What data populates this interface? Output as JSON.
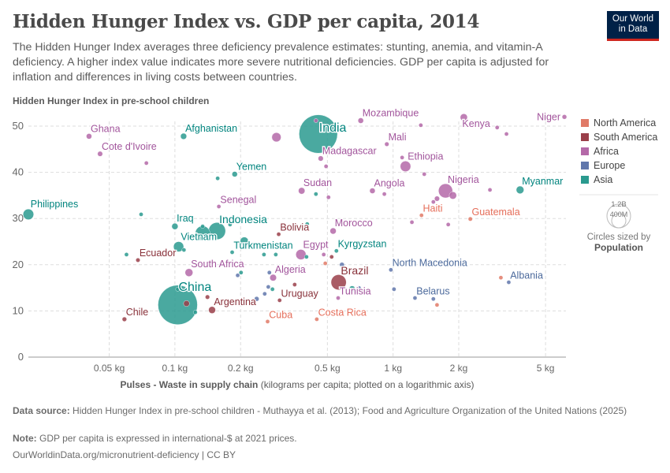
{
  "header": {
    "title": "Hidden Hunger Index vs. GDP per capita, 2014",
    "subtitle": "The Hidden Hunger Index averages three deficiency prevalence estimates: stunting, anemia, and vitamin-A deficiency. A higher index value indicates more severe nutritional deficiencies. GDP per capita is adjusted for inflation and differences in living costs between countries.",
    "logo_line1": "Our World",
    "logo_line2": "in Data"
  },
  "legend": {
    "items": [
      {
        "label": "North America",
        "color": "#E07A67"
      },
      {
        "label": "South America",
        "color": "#9A3F4A"
      },
      {
        "label": "Africa",
        "color": "#B469A8"
      },
      {
        "label": "Europe",
        "color": "#6077AC"
      },
      {
        "label": "Asia",
        "color": "#2A9A8F"
      }
    ],
    "size_big": "1.2B",
    "size_small": "400M",
    "size_caption": "Circles sized by",
    "size_variable": "Population"
  },
  "chart_data": {
    "type": "scatter",
    "title": "Hidden Hunger Index vs. GDP per capita, 2014",
    "ylabel": "Hidden Hunger Index in pre-school children",
    "xlabel_bold": "Pulses - Waste in supply chain",
    "xlabel_rest": "(kilograms per capita; plotted on a logarithmic axis)",
    "x_scale": "log",
    "xlim": [
      0.0213,
      6.2
    ],
    "ylim": [
      0,
      50
    ],
    "x_ticks": [
      {
        "v": 0.05,
        "label": "0.05 kg"
      },
      {
        "v": 0.1,
        "label": "0.1 kg"
      },
      {
        "v": 0.2,
        "label": "0.2 kg"
      },
      {
        "v": 0.5,
        "label": "0.5 kg"
      },
      {
        "v": 1,
        "label": "1 kg"
      },
      {
        "v": 2,
        "label": "2 kg"
      },
      {
        "v": 5,
        "label": "5 kg"
      }
    ],
    "y_ticks": [
      0,
      10,
      20,
      30,
      40,
      50
    ],
    "grid": true,
    "legend_position": "right",
    "label_colors": {
      "North America": "#E56E5A",
      "South America": "#883039",
      "Africa": "#A2559C",
      "Europe": "#4C6A9C",
      "Asia": "#00847E"
    },
    "points": [
      {
        "label": "Philippines",
        "region": "Asia",
        "x": 0.0213,
        "y": 30.9,
        "pop": 100
      },
      {
        "label": "Ghana",
        "region": "Africa",
        "x": 0.0404,
        "y": 47.8,
        "pop": 27
      },
      {
        "label": "Cote d'Ivoire",
        "region": "Africa",
        "x": 0.0454,
        "y": 44.0,
        "pop": 23
      },
      {
        "label": "Afghanistan",
        "region": "Asia",
        "x": 0.1096,
        "y": 47.8,
        "pop": 33
      },
      {
        "label": "India",
        "region": "Asia",
        "x": 0.454,
        "y": 48.3,
        "pop": 1300
      },
      {
        "label": "Mozambique",
        "region": "Africa",
        "x": 0.711,
        "y": 51.2,
        "pop": 27
      },
      {
        "label": "Kenya",
        "region": "Africa",
        "x": 2.11,
        "y": 51.9,
        "pop": 46
      },
      {
        "label": "Niger",
        "region": "Africa",
        "x": 6.1,
        "y": 52.0,
        "pop": 19
      },
      {
        "label": "Mali",
        "region": "Africa",
        "x": 0.936,
        "y": 46.1,
        "pop": 17
      },
      {
        "label": "Madagascar",
        "region": "Africa",
        "x": 0.466,
        "y": 43.0,
        "pop": 24
      },
      {
        "label": "Ethiopia",
        "region": "Africa",
        "x": 1.14,
        "y": 41.3,
        "pop": 98
      },
      {
        "label": "Yemen",
        "region": "Asia",
        "x": 0.188,
        "y": 39.6,
        "pop": 26
      },
      {
        "label": "Sudan",
        "region": "Africa",
        "x": 0.381,
        "y": 36.0,
        "pop": 38
      },
      {
        "label": "Angola",
        "region": "Africa",
        "x": 0.804,
        "y": 36.0,
        "pop": 27
      },
      {
        "label": "Nigeria",
        "region": "Africa",
        "x": 1.74,
        "y": 36.0,
        "pop": 176
      },
      {
        "label": "Myanmar",
        "region": "Asia",
        "x": 3.82,
        "y": 36.2,
        "pop": 52
      },
      {
        "label": "Senegal",
        "region": "Africa",
        "x": 0.159,
        "y": 32.6,
        "pop": 14
      },
      {
        "label": "Haiti",
        "region": "North America",
        "x": 1.35,
        "y": 30.7,
        "pop": 10
      },
      {
        "label": "Guatemala",
        "region": "North America",
        "x": 2.26,
        "y": 29.9,
        "pop": 16
      },
      {
        "label": "Iraq",
        "region": "Asia",
        "x": 0.1,
        "y": 28.3,
        "pop": 35
      },
      {
        "label": "Indonesia",
        "region": "Asia",
        "x": 0.156,
        "y": 27.3,
        "pop": 255
      },
      {
        "label": "Bolivia",
        "region": "South America",
        "x": 0.299,
        "y": 26.6,
        "pop": 11
      },
      {
        "label": "Morocco",
        "region": "Africa",
        "x": 0.531,
        "y": 27.3,
        "pop": 34
      },
      {
        "label": "Vietnam",
        "region": "Asia",
        "x": 0.104,
        "y": 23.9,
        "pop": 92
      },
      {
        "label": "Turkmenistan",
        "region": "Asia",
        "x": 0.183,
        "y": 22.7,
        "pop": 5
      },
      {
        "label": "Egypt",
        "region": "Africa",
        "x": 0.378,
        "y": 22.2,
        "pop": 92
      },
      {
        "label": "Kyrgyzstan",
        "region": "Asia",
        "x": 0.55,
        "y": 23.0,
        "pop": 6
      },
      {
        "label": "Ecuador",
        "region": "South America",
        "x": 0.0677,
        "y": 21.0,
        "pop": 16
      },
      {
        "label": "South Africa",
        "region": "Africa",
        "x": 0.116,
        "y": 18.3,
        "pop": 54
      },
      {
        "label": "North Macedonia",
        "region": "Europe",
        "x": 0.977,
        "y": 18.9,
        "pop": 2
      },
      {
        "label": "Albania",
        "region": "Europe",
        "x": 3.39,
        "y": 16.2,
        "pop": 3
      },
      {
        "label": "Brazil",
        "region": "South America",
        "x": 0.563,
        "y": 16.2,
        "pop": 204
      },
      {
        "label": "Algeria",
        "region": "Africa",
        "x": 0.282,
        "y": 17.2,
        "pop": 39
      },
      {
        "label": "China",
        "region": "Asia",
        "x": 0.103,
        "y": 11.3,
        "pop": 1370
      },
      {
        "label": "Argentina",
        "region": "South America",
        "x": 0.148,
        "y": 10.2,
        "pop": 43
      },
      {
        "label": "Uruguay",
        "region": "South America",
        "x": 0.302,
        "y": 12.3,
        "pop": 3
      },
      {
        "label": "Tunisia",
        "region": "Africa",
        "x": 0.56,
        "y": 12.8,
        "pop": 11
      },
      {
        "label": "Belarus",
        "region": "Europe",
        "x": 1.26,
        "y": 12.8,
        "pop": 9
      },
      {
        "label": "Chile",
        "region": "South America",
        "x": 0.0587,
        "y": 8.2,
        "pop": 18
      },
      {
        "label": "Cuba",
        "region": "North America",
        "x": 0.266,
        "y": 7.7,
        "pop": 11
      },
      {
        "label": "Costa Rica",
        "region": "North America",
        "x": 0.447,
        "y": 8.2,
        "pop": 5
      },
      {
        "label": "",
        "region": "Africa",
        "x": 0.074,
        "y": 42.0,
        "pop": 8
      },
      {
        "label": "",
        "region": "Africa",
        "x": 0.292,
        "y": 47.6,
        "pop": 75
      },
      {
        "label": "",
        "region": "Asia",
        "x": 0.07,
        "y": 30.9,
        "pop": 10
      },
      {
        "label": "",
        "region": "Asia",
        "x": 0.157,
        "y": 38.7,
        "pop": 5
      },
      {
        "label": "",
        "region": "Africa",
        "x": 0.493,
        "y": 41.3,
        "pop": 8
      },
      {
        "label": "",
        "region": "Asia",
        "x": 0.443,
        "y": 35.3,
        "pop": 10
      },
      {
        "label": "",
        "region": "Africa",
        "x": 0.506,
        "y": 34.6,
        "pop": 5
      },
      {
        "label": "",
        "region": "Asia",
        "x": 0.134,
        "y": 28.3,
        "pop": 5
      },
      {
        "label": "",
        "region": "Asia",
        "x": 0.134,
        "y": 26.8,
        "pop": 190
      },
      {
        "label": "",
        "region": "Asia",
        "x": 0.179,
        "y": 28.7,
        "pop": 6
      },
      {
        "label": "",
        "region": "Asia",
        "x": 0.404,
        "y": 28.8,
        "pop": 6
      },
      {
        "label": "",
        "region": "Asia",
        "x": 0.11,
        "y": 23.2,
        "pop": 6
      },
      {
        "label": "",
        "region": "Asia",
        "x": 0.208,
        "y": 25.1,
        "pop": 60
      },
      {
        "label": "",
        "region": "Asia",
        "x": 0.06,
        "y": 22.2,
        "pop": 5
      },
      {
        "label": "",
        "region": "Asia",
        "x": 0.256,
        "y": 22.2,
        "pop": 4
      },
      {
        "label": "",
        "region": "Asia",
        "x": 0.29,
        "y": 22.2,
        "pop": 5
      },
      {
        "label": "",
        "region": "Asia",
        "x": 0.401,
        "y": 21.7,
        "pop": 8
      },
      {
        "label": "",
        "region": "Africa",
        "x": 0.481,
        "y": 22.2,
        "pop": 5
      },
      {
        "label": "",
        "region": "South America",
        "x": 0.523,
        "y": 21.7,
        "pop": 10
      },
      {
        "label": "",
        "region": "North America",
        "x": 0.489,
        "y": 20.3,
        "pop": 4
      },
      {
        "label": "",
        "region": "Europe",
        "x": 0.194,
        "y": 17.7,
        "pop": 4
      },
      {
        "label": "",
        "region": "Asia",
        "x": 0.201,
        "y": 18.3,
        "pop": 4
      },
      {
        "label": "",
        "region": "Europe",
        "x": 0.271,
        "y": 18.3,
        "pop": 3
      },
      {
        "label": "",
        "region": "South America",
        "x": 0.354,
        "y": 15.7,
        "pop": 3
      },
      {
        "label": "",
        "region": "Europe",
        "x": 0.268,
        "y": 15.2,
        "pop": 3
      },
      {
        "label": "",
        "region": "Asia",
        "x": 0.28,
        "y": 14.7,
        "pop": 3
      },
      {
        "label": "",
        "region": "Europe",
        "x": 0.258,
        "y": 13.7,
        "pop": 3
      },
      {
        "label": "",
        "region": "Europe",
        "x": 0.237,
        "y": 12.6,
        "pop": 20
      },
      {
        "label": "",
        "region": "South America",
        "x": 0.141,
        "y": 13.0,
        "pop": 17
      },
      {
        "label": "",
        "region": "South America",
        "x": 0.113,
        "y": 11.6,
        "pop": 31
      },
      {
        "label": "",
        "region": "Asia",
        "x": 0.124,
        "y": 9.7,
        "pop": 15
      },
      {
        "label": "",
        "region": "Asia",
        "x": 0.103,
        "y": 14.7,
        "pop": 5
      },
      {
        "label": "",
        "region": "Africa",
        "x": 0.443,
        "y": 51.2,
        "pop": 4
      },
      {
        "label": "",
        "region": "Africa",
        "x": 1.34,
        "y": 50.2,
        "pop": 2
      },
      {
        "label": "",
        "region": "Africa",
        "x": 3.0,
        "y": 49.7,
        "pop": 6
      },
      {
        "label": "",
        "region": "Africa",
        "x": 3.31,
        "y": 48.3,
        "pop": 6
      },
      {
        "label": "",
        "region": "Africa",
        "x": 1.1,
        "y": 43.2,
        "pop": 6
      },
      {
        "label": "",
        "region": "Africa",
        "x": 1.39,
        "y": 39.6,
        "pop": 5
      },
      {
        "label": "",
        "region": "Africa",
        "x": 0.912,
        "y": 35.3,
        "pop": 6
      },
      {
        "label": "",
        "region": "Africa",
        "x": 1.88,
        "y": 35.0,
        "pop": 48
      },
      {
        "label": "",
        "region": "Africa",
        "x": 1.59,
        "y": 34.3,
        "pop": 23
      },
      {
        "label": "",
        "region": "Africa",
        "x": 1.53,
        "y": 33.6,
        "pop": 5
      },
      {
        "label": "",
        "region": "Africa",
        "x": 2.78,
        "y": 36.2,
        "pop": 8
      },
      {
        "label": "",
        "region": "Africa",
        "x": 1.22,
        "y": 29.2,
        "pop": 5
      },
      {
        "label": "",
        "region": "Africa",
        "x": 1.79,
        "y": 28.7,
        "pop": 5
      },
      {
        "label": "",
        "region": "Europe",
        "x": 0.583,
        "y": 20.0,
        "pop": 20
      },
      {
        "label": "",
        "region": "Asia",
        "x": 0.649,
        "y": 14.8,
        "pop": 30
      },
      {
        "label": "",
        "region": "Europe",
        "x": 0.694,
        "y": 14.8,
        "pop": 30
      },
      {
        "label": "",
        "region": "Europe",
        "x": 1.01,
        "y": 14.7,
        "pop": 3
      },
      {
        "label": "",
        "region": "Europe",
        "x": 1.53,
        "y": 12.6,
        "pop": 3
      },
      {
        "label": "",
        "region": "North America",
        "x": 1.59,
        "y": 11.3,
        "pop": 4
      },
      {
        "label": "",
        "region": "North America",
        "x": 3.12,
        "y": 17.2,
        "pop": 4
      }
    ]
  },
  "footer": {
    "source_label": "Data source:",
    "source_text": "Hidden Hunger Index in pre-school children - Muthayya et al. (2013); Food and Agriculture Organization of the United Nations (2025)",
    "note_label": "Note:",
    "note_text": "GDP per capita is expressed in international-$ at 2021 prices.",
    "url": "OurWorldinData.org/micronutrient-deficiency | CC BY"
  }
}
